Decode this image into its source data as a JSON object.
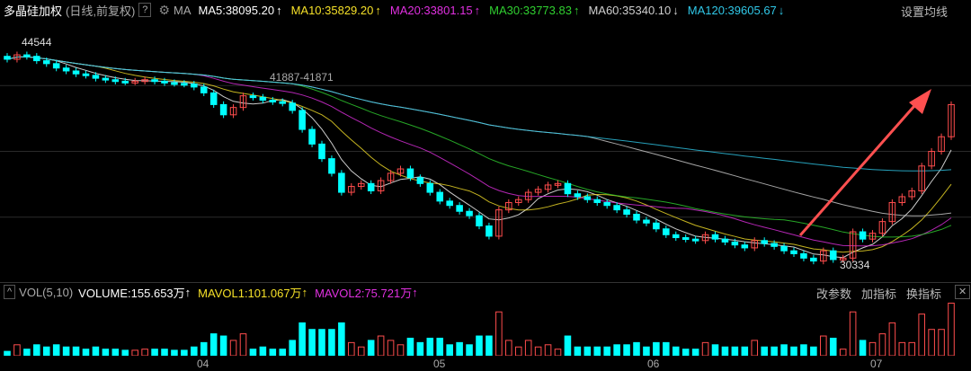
{
  "header": {
    "title": "多晶硅加权",
    "subtitle": "(日线,前复权)",
    "help": "?",
    "ma_label": "MA",
    "ma_items": [
      {
        "label": "MA5:38095.20",
        "arrow": "↑",
        "color": "#ffffff"
      },
      {
        "label": "MA10:35829.20",
        "arrow": "↑",
        "color": "#f5e028"
      },
      {
        "label": "MA20:33801.15",
        "arrow": "↑",
        "color": "#e030e0"
      },
      {
        "label": "MA30:33773.83",
        "arrow": "↑",
        "color": "#30d030"
      },
      {
        "label": "MA60:35340.10",
        "arrow": "↓",
        "color": "#d0d0d0"
      },
      {
        "label": "MA120:39605.67",
        "arrow": "↓",
        "color": "#30c8e8"
      }
    ],
    "settings": "设置均线"
  },
  "annotations": {
    "high": "44544",
    "range": "41887-41871",
    "low": "30334"
  },
  "volume_header": {
    "collapse": "^",
    "label": "VOL(5,10)",
    "volume": "VOLUME:155.653万",
    "volume_arrow": "↑",
    "mavol1": "MAVOL1:101.067万",
    "mavol1_arrow": "↑",
    "mavol2": "MAVOL2:75.721万",
    "mavol2_arrow": "↑",
    "btn_params": "改参数",
    "btn_add": "加指标",
    "btn_switch": "换指标",
    "close": "✕"
  },
  "colors": {
    "up": "#ff4d4d",
    "down": "#00ffff",
    "arrow": "#ff5050"
  },
  "x_axis_labels": [
    "04",
    "05",
    "06",
    "07"
  ],
  "chart_data": {
    "type": "candlestick",
    "y_range": [
      29000,
      47000
    ],
    "closes": [
      44300,
      44600,
      44500,
      44200,
      44000,
      43700,
      43500,
      43300,
      43200,
      43000,
      42900,
      42800,
      42750,
      42800,
      42900,
      42800,
      42700,
      42650,
      42600,
      42400,
      42000,
      41200,
      40500,
      41000,
      41800,
      41700,
      41500,
      41400,
      41300,
      40800,
      39500,
      38500,
      37500,
      36500,
      35200,
      35600,
      35800,
      35300,
      36000,
      36500,
      36800,
      36200,
      35800,
      35200,
      34600,
      34300,
      33900,
      33600,
      32900,
      32200,
      34000,
      34500,
      34700,
      35200,
      35400,
      35700,
      35800,
      35100,
      34900,
      34700,
      34500,
      34300,
      34000,
      33700,
      33300,
      33100,
      32700,
      32300,
      32100,
      32000,
      31900,
      32300,
      32000,
      31800,
      31600,
      31400,
      31900,
      31700,
      31500,
      31200,
      31000,
      30700,
      30500,
      31200,
      30600,
      30700,
      32500,
      32000,
      32400,
      33200,
      34500,
      34900,
      35300,
      37000,
      38000,
      39000,
      41200
    ]
  }
}
